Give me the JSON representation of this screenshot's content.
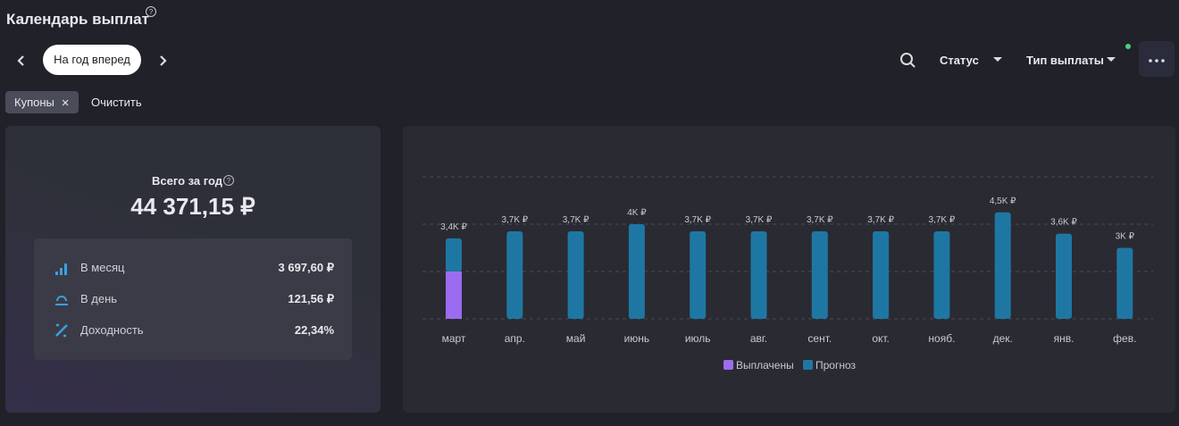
{
  "header": {
    "title": "Календарь выплат",
    "period": "На год вперед",
    "status": "Статус",
    "payment_type": "Тип выплаты"
  },
  "filters": {
    "chip": "Купоны",
    "clear": "Очистить"
  },
  "summary": {
    "title": "Всего за год",
    "total": "44 371,15 ₽",
    "rows": [
      {
        "label": "В месяц",
        "value": "3 697,60 ₽"
      },
      {
        "label": "В день",
        "value": "121,56 ₽"
      },
      {
        "label": "Доходность",
        "value": "22,34%"
      }
    ]
  },
  "chart_data": {
    "type": "stacked_bar",
    "categories": [
      "март",
      "апр.",
      "май",
      "июнь",
      "июль",
      "авг.",
      "сент.",
      "окт.",
      "нояб.",
      "дек.",
      "янв.",
      "фев."
    ],
    "series": [
      {
        "name": "Выплачены",
        "color": "#9b6cf0",
        "values": [
          2000,
          0,
          0,
          0,
          0,
          0,
          0,
          0,
          0,
          0,
          0,
          0
        ]
      },
      {
        "name": "Прогноз",
        "color": "#1e77a3",
        "values": [
          1400,
          3700,
          3700,
          4000,
          3700,
          3700,
          3700,
          3700,
          3700,
          4500,
          3600,
          3000
        ]
      }
    ],
    "totals": [
      3400,
      3700,
      3700,
      4000,
      3700,
      3700,
      3700,
      3700,
      3700,
      4500,
      3600,
      3000
    ],
    "total_labels": [
      "3,4K ₽",
      "3,7K ₽",
      "3,7K ₽",
      "4K ₽",
      "3,7K ₽",
      "3,7K ₽",
      "3,7K ₽",
      "3,7K ₽",
      "3,7K ₽",
      "4,5K ₽",
      "3,6K ₽",
      "3K ₽"
    ],
    "ylim": [
      0,
      6000
    ],
    "yticks": [
      0,
      2000,
      4000,
      6000
    ],
    "grid": true
  }
}
